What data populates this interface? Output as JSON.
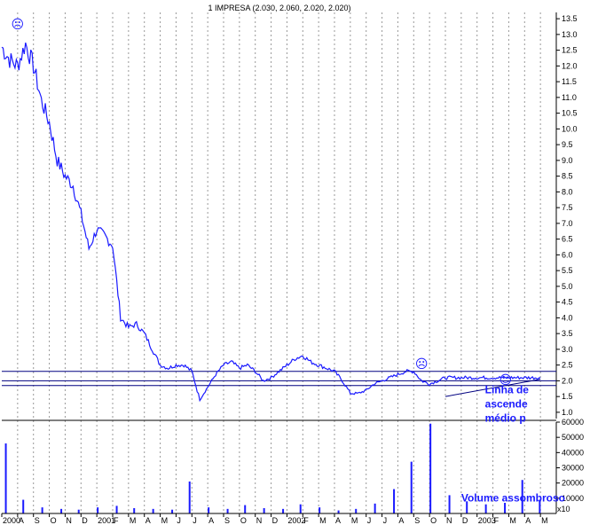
{
  "chart_data": {
    "type": "line",
    "title": "1 IMPRESA (2.030, 2.060, 2.020, 2.020)",
    "price_axis": {
      "ticks": [
        "1.0",
        "1.5",
        "2.0",
        "2.5",
        "3.0",
        "3.5",
        "4.0",
        "4.5",
        "5.0",
        "5.5",
        "6.0",
        "6.5",
        "7.0",
        "7.5",
        "8.0",
        "8.5",
        "9.0",
        "9.5",
        "10.0",
        "10.5",
        "11.0",
        "11.5",
        "12.0",
        "12.5",
        "13.0",
        "13.5"
      ],
      "ylim": [
        0.8,
        13.7
      ]
    },
    "volume_axis": {
      "ticks": [
        "10000",
        "20000",
        "30000",
        "40000",
        "50000",
        "60000"
      ],
      "ylim": [
        0,
        60000
      ],
      "multiplier_label": "x10"
    },
    "x_axis": {
      "months": [
        "2000",
        "A",
        "S",
        "O",
        "N",
        "D",
        "2001",
        "F",
        "M",
        "A",
        "M",
        "J",
        "J",
        "A",
        "S",
        "O",
        "N",
        "D",
        "2002",
        "F",
        "M",
        "A",
        "M",
        "J",
        "J",
        "A",
        "S",
        "O",
        "N",
        "D",
        "2003",
        "F",
        "M",
        "A",
        "M"
      ]
    },
    "price_series": {
      "name": "IMPRESA",
      "color": "#1a1aff",
      "x": [
        0,
        0.5,
        1,
        1.5,
        2,
        2.5,
        3,
        3.5,
        4,
        4.5,
        5,
        5.5,
        6,
        6.5,
        7,
        7.5,
        8,
        8.5,
        9,
        9.5,
        10,
        10.5,
        11,
        11.5,
        12,
        12.5,
        13,
        13.5,
        14,
        14.5,
        15,
        15.5,
        16,
        16.5,
        17,
        17.5,
        18,
        18.5,
        19,
        19.5,
        20,
        20.5,
        21,
        21.5,
        22,
        22.5,
        23,
        23.5,
        24,
        24.5,
        25,
        25.5,
        26,
        26.5,
        27,
        27.5,
        28,
        28.5,
        29,
        29.5,
        30,
        30.5,
        31,
        31.5,
        32,
        32.5,
        33,
        33.5,
        34
      ],
      "y": [
        12.6,
        12.2,
        12.0,
        12.7,
        12.0,
        10.9,
        10.2,
        9.0,
        8.5,
        8.2,
        7.3,
        6.2,
        6.8,
        6.6,
        6.3,
        4.0,
        3.7,
        3.8,
        3.5,
        3.0,
        2.5,
        2.4,
        2.5,
        2.5,
        2.3,
        1.4,
        1.8,
        2.2,
        2.5,
        2.6,
        2.4,
        2.5,
        2.3,
        2.0,
        2.1,
        2.3,
        2.5,
        2.7,
        2.8,
        2.6,
        2.5,
        2.4,
        2.3,
        2.0,
        1.6,
        1.6,
        1.7,
        1.9,
        2.0,
        2.1,
        2.2,
        2.3,
        2.3,
        2.0,
        1.9,
        2.0,
        2.1,
        2.1,
        2.1,
        2.1,
        2.1,
        2.1,
        2.1,
        2.1,
        2.1,
        2.1,
        2.1,
        2.1,
        2.1
      ]
    },
    "horizontal_lines": [
      2.3,
      2.0,
      1.85
    ],
    "trendline": {
      "x": [
        28,
        34
      ],
      "y": [
        1.5,
        2.05
      ]
    },
    "volume_bars": {
      "x": [
        0.2,
        1.3,
        2.5,
        3.7,
        4.8,
        6.0,
        7.2,
        8.3,
        9.5,
        10.7,
        11.8,
        13.0,
        14.2,
        15.3,
        16.5,
        17.7,
        18.8,
        20.0,
        21.2,
        22.3,
        23.5,
        24.7,
        25.8,
        27.0,
        28.2,
        29.3,
        30.5,
        31.7,
        32.8,
        33.9
      ],
      "y": [
        46000,
        9000,
        4000,
        3000,
        2500,
        4000,
        5000,
        3500,
        3000,
        2500,
        21000,
        4000,
        3000,
        5500,
        3500,
        3000,
        6000,
        4000,
        2000,
        3000,
        6500,
        16000,
        34000,
        59000,
        12000,
        8000,
        6000,
        7000,
        22000,
        9000
      ]
    },
    "markers": [
      {
        "x": 1,
        "y": 13.2,
        "label": "☹"
      },
      {
        "x": 26.5,
        "y": 2.4,
        "label": "☹"
      },
      {
        "x": 31.8,
        "y": 1.9,
        "label": "☺"
      }
    ],
    "annotations": [
      {
        "text": "Linha de",
        "x": 30.5,
        "y": 1.6
      },
      {
        "text": "ascende",
        "x": 30.5,
        "y": 1.15
      },
      {
        "text": "médio p",
        "x": 30.5,
        "y": 0.7
      },
      {
        "text": "Volume assombroso",
        "x": 29,
        "y": 8000
      }
    ]
  }
}
